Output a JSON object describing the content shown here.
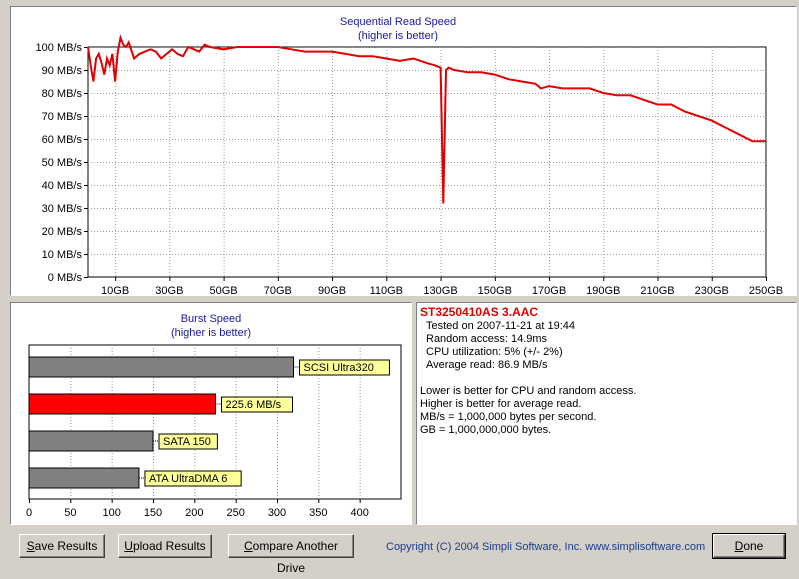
{
  "seq_chart": {
    "title": "Sequential Read Speed",
    "subtitle": "(higher is better)",
    "y_ticks": [
      "0 MB/s",
      "10 MB/s",
      "20 MB/s",
      "30 MB/s",
      "40 MB/s",
      "50 MB/s",
      "60 MB/s",
      "70 MB/s",
      "80 MB/s",
      "90 MB/s",
      "100 MB/s"
    ],
    "x_ticks": [
      "10GB",
      "30GB",
      "50GB",
      "70GB",
      "90GB",
      "110GB",
      "130GB",
      "150GB",
      "170GB",
      "190GB",
      "210GB",
      "230GB",
      "250GB"
    ],
    "line_color": "#e00000"
  },
  "burst_chart": {
    "title": "Burst Speed",
    "subtitle": "(higher is better)",
    "x_ticks": [
      "0",
      "50",
      "100",
      "150",
      "200",
      "250",
      "300",
      "350",
      "400"
    ],
    "bars": [
      {
        "label": "SCSI Ultra320",
        "value": 320,
        "color": "#808080"
      },
      {
        "label": "225.6 MB/s",
        "value": 225.6,
        "color": "#ff0000"
      },
      {
        "label": "SATA 150",
        "value": 150,
        "color": "#808080"
      },
      {
        "label": "ATA UltraDMA 6",
        "value": 133,
        "color": "#808080"
      }
    ],
    "label_bg": "#ffff99"
  },
  "chart_data": [
    {
      "type": "line",
      "title": "Sequential Read Speed",
      "subtitle": "(higher is better)",
      "xlabel": "",
      "ylabel": "",
      "xlim": [
        0,
        250
      ],
      "ylim": [
        0,
        100
      ],
      "grid": true,
      "x_unit": "GB",
      "y_unit": "MB/s",
      "series": [
        {
          "x": [
            0,
            1,
            2,
            3,
            4,
            5,
            6,
            7,
            8,
            9,
            10,
            11,
            12,
            13,
            14,
            15,
            17,
            19,
            21,
            23,
            25,
            27,
            29,
            31,
            33,
            35,
            37,
            39,
            41,
            43,
            45,
            50,
            55,
            60,
            65,
            70,
            75,
            80,
            85,
            90,
            95,
            100,
            105,
            110,
            115,
            120,
            125,
            128,
            130,
            131,
            132,
            133,
            135,
            140,
            145,
            150,
            155,
            160,
            165,
            167,
            170,
            175,
            180,
            185,
            190,
            195,
            200,
            205,
            210,
            215,
            220,
            225,
            230,
            235,
            240,
            245,
            250
          ],
          "values": [
            100,
            92,
            85,
            95,
            97,
            93,
            88,
            95,
            92,
            97,
            85,
            98,
            104,
            101,
            100,
            102,
            95,
            97,
            98,
            99,
            98,
            95,
            97,
            99,
            97,
            96,
            100,
            99,
            98,
            101,
            100,
            99,
            100,
            100,
            100,
            100,
            99,
            98,
            98,
            98,
            97,
            96,
            96,
            95,
            94,
            95,
            93,
            92,
            91,
            32,
            90,
            91,
            90,
            89,
            89,
            88,
            86,
            85,
            84,
            82,
            83,
            82,
            82,
            82,
            80,
            79,
            79,
            77,
            75,
            75,
            72,
            70,
            68,
            65,
            62,
            59,
            59
          ]
        }
      ]
    },
    {
      "type": "bar",
      "title": "Burst Speed",
      "subtitle": "(higher is better)",
      "orientation": "horizontal",
      "categories": [
        "SCSI Ultra320",
        "225.6 MB/s",
        "SATA 150",
        "ATA UltraDMA 6"
      ],
      "values": [
        320,
        225.6,
        150,
        133
      ],
      "xlim": [
        0,
        450
      ]
    }
  ],
  "info": {
    "drive_name": "ST3250410AS  3.AAC",
    "tested_on": "Tested on 2007-11-21 at 19:44",
    "random_access": "Random access: 14.9ms",
    "cpu_util": "CPU utilization: 5% (+/- 2%)",
    "avg_read": "Average read: 86.9 MB/s",
    "note1": "Lower is better for CPU and random access.",
    "note2": "Higher is better for average read.",
    "note3": "MB/s = 1,000,000 bytes per second.",
    "note4": "GB = 1,000,000,000 bytes."
  },
  "buttons": {
    "save_u": "S",
    "save_rest": "ave Results",
    "upload_u": "U",
    "upload_rest": "pload Results",
    "compare_u": "C",
    "compare_rest": "ompare Another Drive",
    "done_u": "D",
    "done_rest": "one"
  },
  "copyright": "Copyright (C) 2004 Simpli Software, Inc. www.simplisoftware.com"
}
